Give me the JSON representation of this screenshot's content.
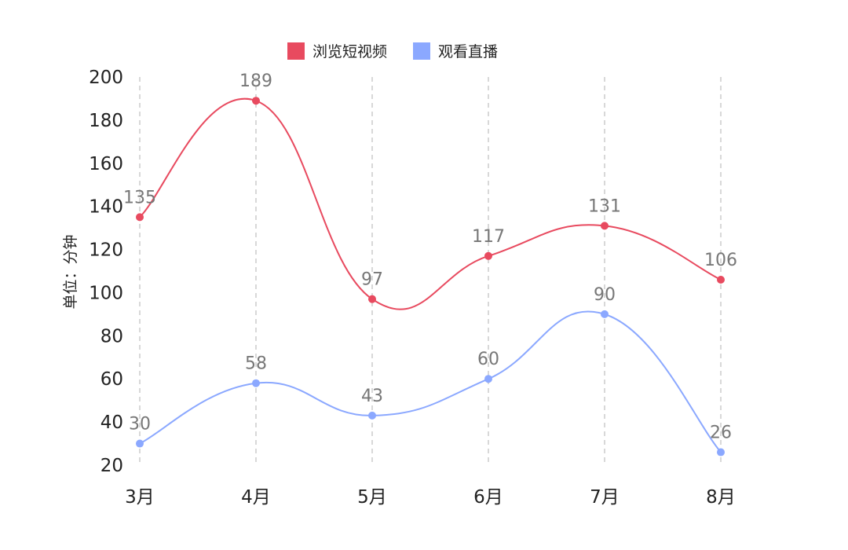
{
  "chart_data": {
    "type": "line",
    "categories": [
      "3月",
      "4月",
      "5月",
      "6月",
      "7月",
      "8月"
    ],
    "series": [
      {
        "name": "浏览短视频",
        "values": [
          135,
          189,
          97,
          117,
          131,
          106
        ],
        "color": "#E84A5F"
      },
      {
        "name": "观看直播",
        "values": [
          30,
          58,
          43,
          60,
          90,
          26
        ],
        "color": "#8BA8FF"
      }
    ],
    "title": "",
    "xlabel": "",
    "ylabel": "单位：分钟",
    "ylim": [
      20,
      200
    ],
    "y_ticks": [
      20,
      40,
      60,
      80,
      100,
      120,
      140,
      160,
      180,
      200
    ],
    "grid": {
      "vertical_dashed": true,
      "horizontal": false
    },
    "smooth": true,
    "legend_position": "top-center"
  }
}
